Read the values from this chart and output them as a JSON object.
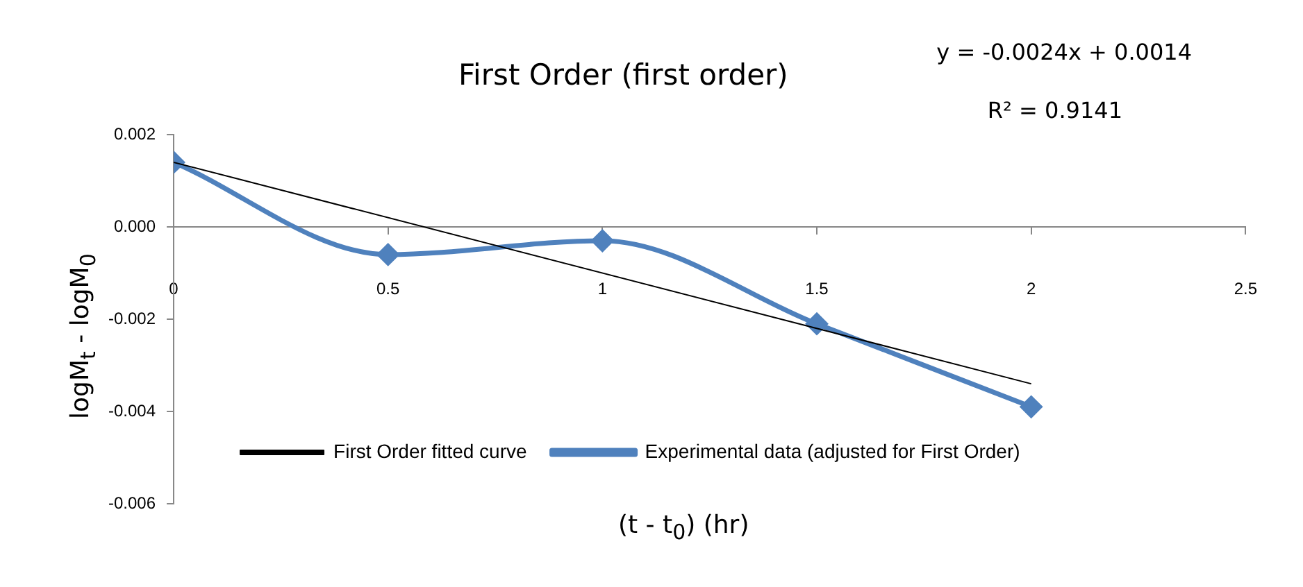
{
  "chart_data": {
    "type": "line",
    "title": "First Order (first order)",
    "xlabel": "(t - t$_{0}$) (hr)",
    "ylabel": "logM$_{t}$ - logM$_{0}$",
    "x": [
      0,
      0.5,
      1,
      1.5,
      2
    ],
    "series": [
      {
        "name": "Experimental data (adjusted for First Order)",
        "color": "#4f81bd",
        "values": [
          0.0014,
          -0.0006,
          -0.0003,
          -0.0021,
          -0.0039
        ],
        "marker": "diamond"
      },
      {
        "name": "First Order fitted curve",
        "type": "line",
        "color": "#000000",
        "x": [
          0,
          2
        ],
        "values": [
          0.0014,
          -0.0034
        ],
        "marker": "none"
      }
    ],
    "xlim": [
      0,
      2.5
    ],
    "xticks": [
      0,
      0.5,
      1,
      1.5,
      2,
      2.5
    ],
    "ylim": [
      -0.006,
      0.002
    ],
    "yticks": [
      {
        "value": -0.006,
        "label": "-0.006"
      },
      {
        "value": -0.004,
        "label": "-0.004"
      },
      {
        "value": -0.002,
        "label": "-0.002"
      },
      {
        "value": 0,
        "label": "0.000"
      },
      {
        "value": 0.002,
        "label": "0.002"
      }
    ],
    "annotations": [
      "y = -0.0024x + 0.0014",
      "R² = 0.9141"
    ],
    "legend": "bottom left"
  }
}
